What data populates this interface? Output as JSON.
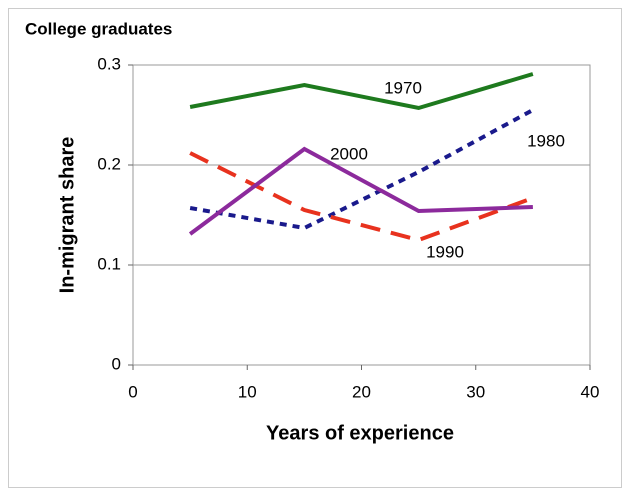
{
  "chart_data": {
    "type": "line",
    "title": "College graduates",
    "xlabel": "Years of experience",
    "ylabel": "In-migrant share",
    "x": [
      5,
      15,
      25,
      35
    ],
    "series": [
      {
        "name": "1970",
        "color": "#1e7a1e",
        "dash": "solid",
        "values": [
          0.258,
          0.28,
          0.257,
          0.291
        ]
      },
      {
        "name": "1980",
        "color": "#1a1a8c",
        "dash": "dotted",
        "values": [
          0.157,
          0.137,
          0.193,
          0.255
        ]
      },
      {
        "name": "1990",
        "color": "#e8321e",
        "dash": "dashed",
        "values": [
          0.212,
          0.155,
          0.125,
          0.167
        ]
      },
      {
        "name": "2000",
        "color": "#8c2a9c",
        "dash": "solid",
        "values": [
          0.131,
          0.216,
          0.154,
          0.158
        ]
      }
    ],
    "xlim": [
      0,
      40
    ],
    "xticks": [
      0,
      10,
      20,
      30,
      40
    ],
    "ylim": [
      0,
      0.3
    ],
    "yticks": [
      0,
      0.1,
      0.2,
      0.3
    ],
    "grid": true
  }
}
